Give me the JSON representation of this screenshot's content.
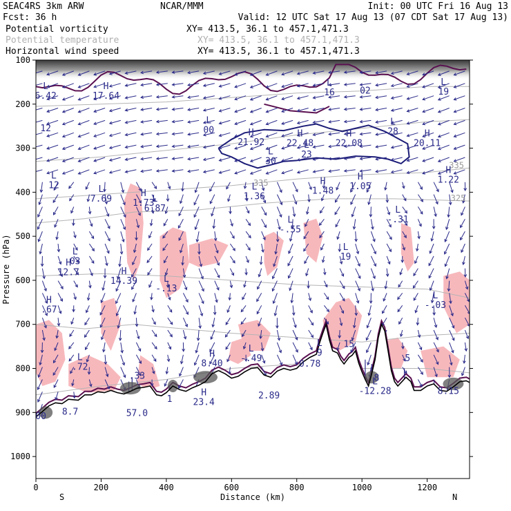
{
  "header": {
    "project": "SEAC4RS   3km ARW",
    "forecast": "Fcst:   36 h",
    "center": "NCAR/MMM",
    "init": "Init: 00 UTC Fri 16 Aug 13",
    "valid": "Valid: 12 UTC Sat 17 Aug 13 (07 CDT Sat 17 Aug 13)"
  },
  "fields": [
    {
      "name": "Potential vorticity",
      "coords": "XY= 413.5, 36.1 to 457.1,471.3",
      "color": "#000000"
    },
    {
      "name": "Potential temperature",
      "coords": "XY= 413.5, 36.1 to 457.1,471.3",
      "color": "#b0b0b0"
    },
    {
      "name": "Horizontal wind speed",
      "coords": "XY= 413.5, 36.1 to 457.1,471.3",
      "color": "#000000"
    }
  ],
  "chart_data": {
    "type": "cross-section",
    "xlabel": "Distance (km)",
    "ylabel": "Pressure (hPa)",
    "xlim": [
      0,
      1330
    ],
    "ylim": [
      1050,
      100
    ],
    "x_ticks": [
      0,
      200,
      400,
      600,
      800,
      1000,
      1200
    ],
    "y_ticks": [
      100,
      200,
      300,
      400,
      500,
      600,
      700,
      800,
      900,
      1000
    ],
    "x_end_labels": {
      "left": "S",
      "right": "N"
    },
    "colors": {
      "vector": "#2a2a8a",
      "pv_contour": "#5a1050",
      "pv_fill": "#f7b8bc",
      "theta": "#b4b4b4",
      "terrain": "#000000",
      "speed_contour": "#1c1c78"
    },
    "theta_labels": [
      {
        "x": 690,
        "p": 385,
        "text": "335"
      },
      {
        "x": 1295,
        "p": 420,
        "text": "325"
      },
      {
        "x": 1290,
        "p": 345,
        "text": "335"
      }
    ],
    "extrema": [
      {
        "x": 30,
        "p": 185,
        "letter": "L",
        "value": "6.42"
      },
      {
        "x": 215,
        "p": 185,
        "letter": "H",
        "value": "17.64"
      },
      {
        "x": 30,
        "p": 258,
        "letter": "",
        "value": "12"
      },
      {
        "x": 530,
        "p": 262,
        "letter": "L",
        "value": "00"
      },
      {
        "x": 660,
        "p": 290,
        "letter": "H",
        "value": "21.92"
      },
      {
        "x": 810,
        "p": 292,
        "letter": "H",
        "value": "22.48"
      },
      {
        "x": 830,
        "p": 318,
        "letter": "L",
        "value": "23"
      },
      {
        "x": 960,
        "p": 292,
        "letter": "H",
        "value": "22.08"
      },
      {
        "x": 720,
        "p": 333,
        "letter": "L",
        "value": "30"
      },
      {
        "x": 1200,
        "p": 292,
        "letter": "H",
        "value": "20.11"
      },
      {
        "x": 1095,
        "p": 265,
        "letter": "L",
        "value": "28"
      },
      {
        "x": 900,
        "p": 177,
        "letter": "L",
        "value": "16"
      },
      {
        "x": 1010,
        "p": 173,
        "letter": "",
        "value": "02"
      },
      {
        "x": 1250,
        "p": 175,
        "letter": "L",
        "value": "19"
      },
      {
        "x": 55,
        "p": 388,
        "letter": "L",
        "value": "12"
      },
      {
        "x": 200,
        "p": 418,
        "letter": "L",
        "value": "7.69"
      },
      {
        "x": 330,
        "p": 428,
        "letter": "H",
        "value": "1.73"
      },
      {
        "x": 365,
        "p": 440,
        "letter": "L",
        "value": "6.87"
      },
      {
        "x": 670,
        "p": 413,
        "letter": "L",
        "value": "1.36"
      },
      {
        "x": 880,
        "p": 400,
        "letter": "H",
        "value": "1.48"
      },
      {
        "x": 995,
        "p": 390,
        "letter": "H",
        "value": "1.05"
      },
      {
        "x": 1265,
        "p": 375,
        "letter": "H",
        "value": "1.22"
      },
      {
        "x": 780,
        "p": 488,
        "letter": "L",
        "value": "-.55"
      },
      {
        "x": 1110,
        "p": 465,
        "letter": "L",
        "value": "-.31"
      },
      {
        "x": 120,
        "p": 560,
        "letter": "L",
        "value": "03"
      },
      {
        "x": 100,
        "p": 585,
        "letter": "H",
        "value": "12.7"
      },
      {
        "x": 270,
        "p": 605,
        "letter": "H",
        "value": "14.39"
      },
      {
        "x": 400,
        "p": 622,
        "letter": "L",
        "value": "-.13"
      },
      {
        "x": 950,
        "p": 550,
        "letter": "L",
        "value": "19"
      },
      {
        "x": 40,
        "p": 670,
        "letter": "H",
        "value": ".67"
      },
      {
        "x": 1225,
        "p": 660,
        "letter": "L",
        "value": "-.03"
      },
      {
        "x": 135,
        "p": 800,
        "letter": "L",
        "value": ".72"
      },
      {
        "x": 310,
        "p": 820,
        "letter": "",
        "value": ".33"
      },
      {
        "x": 540,
        "p": 792,
        "letter": "H",
        "value": "8.40"
      },
      {
        "x": 660,
        "p": 780,
        "letter": "L",
        "value": "-.49"
      },
      {
        "x": 960,
        "p": 748,
        "letter": "",
        "value": "15"
      },
      {
        "x": 870,
        "p": 768,
        "letter": "L",
        "value": "9"
      },
      {
        "x": 840,
        "p": 793,
        "letter": "",
        "value": "0.78"
      },
      {
        "x": 1140,
        "p": 780,
        "letter": "",
        "value": "5"
      },
      {
        "x": 1040,
        "p": 855,
        "letter": "L",
        "value": "-12.28"
      },
      {
        "x": 1045,
        "p": 825,
        "letter": "",
        "value": "8"
      },
      {
        "x": 715,
        "p": 865,
        "letter": "",
        "value": "2.89"
      },
      {
        "x": 515,
        "p": 880,
        "letter": "H",
        "value": "23.4"
      },
      {
        "x": 410,
        "p": 873,
        "letter": "",
        "value": "1"
      },
      {
        "x": 310,
        "p": 905,
        "letter": "",
        "value": "57.0"
      },
      {
        "x": 105,
        "p": 902,
        "letter": "",
        "value": "8.7"
      },
      {
        "x": 1265,
        "p": 855,
        "letter": "",
        "value": "8.15"
      },
      {
        "x": 15,
        "p": 912,
        "letter": "",
        "value": "00"
      }
    ]
  }
}
